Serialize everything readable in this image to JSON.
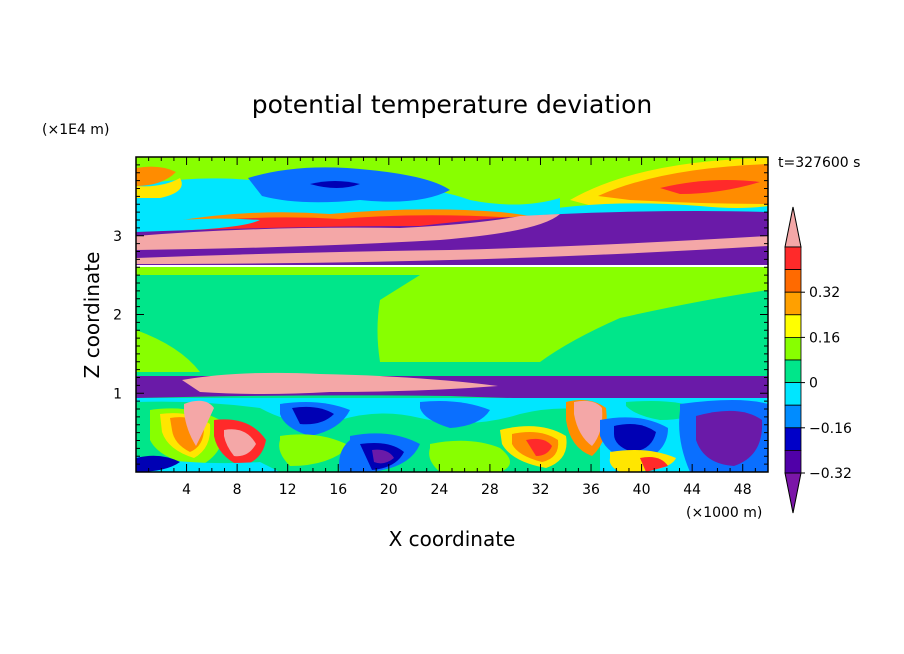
{
  "chart_data": {
    "type": "heatmap",
    "title": "potential temperature deviation",
    "time_label": "t=327600 s",
    "xlabel": "X coordinate",
    "ylabel": "Z coordinate",
    "x_unit": "(×1000 m)",
    "y_unit": "(×1E4 m)",
    "xlim": [
      0,
      50
    ],
    "ylim": [
      0,
      4
    ],
    "x_ticks": [
      4,
      8,
      12,
      16,
      20,
      24,
      28,
      32,
      36,
      40,
      44,
      48
    ],
    "y_ticks": [
      1,
      2,
      3
    ],
    "colorbar": {
      "ticks": [
        "0.32",
        "0.16",
        "0",
        "−0.16",
        "−0.32"
      ],
      "levels_top_to_bottom": [
        "#f4a7a7",
        "#ff2a2a",
        "#ff6a00",
        "#ffa000",
        "#ffff00",
        "#88ff00",
        "#00e68a",
        "#00e6ff",
        "#008cff",
        "#0000c8",
        "#5000a8",
        "#7b16a8"
      ]
    },
    "colors": {
      "pink": "#f4a7a7",
      "red": "#ff2a2a",
      "orange": "#ff8c00",
      "yellow": "#ffe600",
      "lime": "#88ff00",
      "green": "#00e68a",
      "cyan": "#00e6ff",
      "blue": "#0a6fff",
      "navy": "#0000b4",
      "purple": "#6a1aa8"
    }
  }
}
